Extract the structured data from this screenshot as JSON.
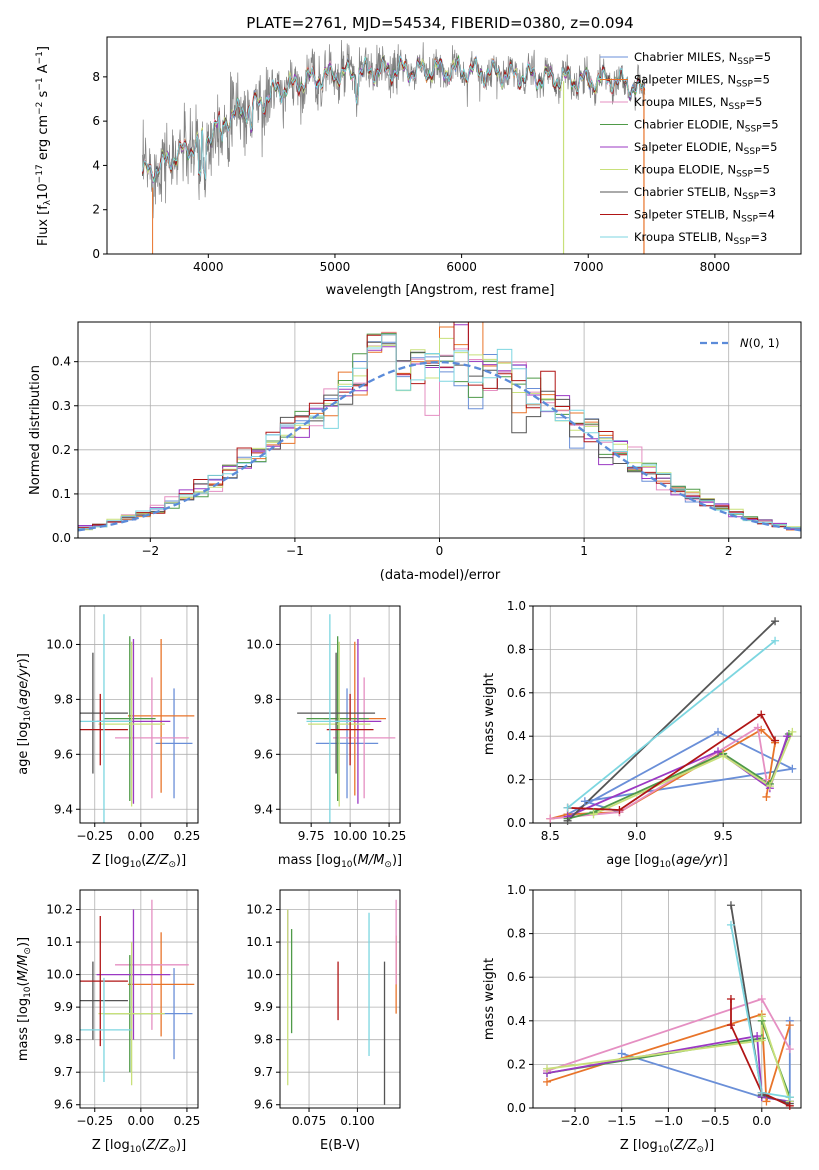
{
  "colors": {
    "Chabrier MILES": "#6a8fd8",
    "Salpeter MILES": "#e8742a",
    "Kroupa MILES": "#e58fc2",
    "Chabrier ELODIE": "#4f9a48",
    "Salpeter ELODIE": "#9b39c3",
    "Kroupa ELODIE": "#c8e07a",
    "Chabrier STELIB": "#555555",
    "Salpeter STELIB": "#b01515",
    "Kroupa STELIB": "#7dd6e0",
    "normal": "#5b8bd9"
  },
  "chart_data": [
    {
      "id": "spectrum",
      "type": "line",
      "title": "PLATE=2761, MJD=54534, FIBERID=0380, z=0.094",
      "xlabel": "wavelength [Angstrom, rest frame]",
      "ylabel_parts": [
        "Flux [f",
        "λ",
        "10",
        "−17",
        " erg cm",
        "−2",
        " s",
        "−1",
        " A",
        "−1",
        "]"
      ],
      "xlim": [
        3200,
        8680
      ],
      "ylim": [
        0,
        9.8
      ],
      "xticks": [
        "4000",
        "5000",
        "6000",
        "7000",
        "8000"
      ],
      "yticks": [
        "0",
        "2",
        "4",
        "6",
        "8"
      ],
      "legend": [
        {
          "name": "Chabrier MILES",
          "n": "5"
        },
        {
          "name": "Salpeter MILES",
          "n": "5"
        },
        {
          "name": "Kroupa MILES",
          "n": "5"
        },
        {
          "name": "Chabrier ELODIE",
          "n": "5"
        },
        {
          "name": "Salpeter ELODIE",
          "n": "5"
        },
        {
          "name": "Kroupa ELODIE",
          "n": "5"
        },
        {
          "name": "Chabrier STELIB",
          "n": "3"
        },
        {
          "name": "Salpeter STELIB",
          "n": "4"
        },
        {
          "name": "Kroupa STELIB",
          "n": "3"
        }
      ],
      "legend_nssp_label": "N",
      "legend_nssp_sub": "SSP",
      "continuum": {
        "x": [
          3480,
          3600,
          3700,
          3800,
          3900,
          4000,
          4100,
          4200,
          4300,
          4400,
          4500,
          4600,
          4700,
          4800,
          4900,
          5000,
          5200,
          5400,
          5600,
          5800,
          6000,
          6200,
          6400,
          6600,
          6800,
          7000,
          7200,
          7400
        ],
        "y": [
          3.6,
          3.9,
          4.3,
          4.6,
          5.0,
          5.3,
          6.0,
          6.3,
          6.5,
          6.8,
          7.2,
          7.5,
          7.7,
          7.9,
          8.0,
          8.1,
          8.2,
          8.3,
          8.3,
          8.3,
          8.3,
          8.2,
          8.1,
          8.0,
          7.9,
          7.8,
          7.9,
          7.4
        ]
      },
      "data_xrange": [
        3480,
        7450
      ]
    },
    {
      "id": "residuals",
      "type": "step",
      "xlabel": "(data-model)/error",
      "ylabel": "Normed distribution",
      "xlim": [
        -2.5,
        2.5
      ],
      "ylim": [
        0,
        0.49
      ],
      "xticks": [
        "−2",
        "−1",
        "0",
        "1",
        "2"
      ],
      "yticks": [
        "0.0",
        "0.1",
        "0.2",
        "0.3",
        "0.4"
      ],
      "legend": "N(0,1)",
      "bin_width": 0.1,
      "reference": {
        "name": "N(0,1)",
        "mean": 0,
        "sigma": 1
      }
    },
    {
      "id": "age-vs-Z",
      "type": "errorbar",
      "xlabel": "Z [log10(Z/Z⊙)]",
      "ylabel": "age [log10(age/yr)]",
      "xlim": [
        -0.33,
        0.31
      ],
      "ylim": [
        9.35,
        10.14
      ],
      "xticks": [
        "−0.25",
        "0.00",
        "0.25"
      ],
      "yticks": [
        "9.4",
        "9.6",
        "9.8",
        "10.0"
      ],
      "points": [
        {
          "model": "Chabrier MILES",
          "x": 0.18,
          "xerr": 0.1,
          "y": 9.64,
          "yerr": 0.2
        },
        {
          "model": "Salpeter MILES",
          "x": 0.11,
          "xerr": 0.18,
          "y": 9.74,
          "yerr": 0.28
        },
        {
          "model": "Kroupa MILES",
          "x": 0.06,
          "xerr": 0.2,
          "y": 9.66,
          "yerr": 0.22
        },
        {
          "model": "Chabrier ELODIE",
          "x": -0.06,
          "xerr": 0.14,
          "y": 9.73,
          "yerr": 0.3
        },
        {
          "model": "Salpeter ELODIE",
          "x": -0.04,
          "xerr": 0.2,
          "y": 9.72,
          "yerr": 0.3
        },
        {
          "model": "Kroupa ELODIE",
          "x": -0.05,
          "xerr": 0.18,
          "y": 9.71,
          "yerr": 0.3
        },
        {
          "model": "Chabrier STELIB",
          "x": -0.26,
          "xerr": 0.19,
          "y": 9.75,
          "yerr": 0.22
        },
        {
          "model": "Salpeter STELIB",
          "x": -0.22,
          "xerr": 0.15,
          "y": 9.69,
          "yerr": 0.13
        },
        {
          "model": "Kroupa STELIB",
          "x": -0.2,
          "xerr": 0.15,
          "y": 9.72,
          "yerr": 0.39
        }
      ]
    },
    {
      "id": "age-vs-mass",
      "type": "errorbar",
      "xlabel": "mass [log10(M/M⊙)]",
      "ylabel": "",
      "xlim": [
        9.55,
        10.32
      ],
      "ylim": [
        9.35,
        10.14
      ],
      "xticks": [
        "9.75",
        "10.00",
        "10.25"
      ],
      "yticks": [
        "9.4",
        "9.6",
        "9.8",
        "10.0"
      ],
      "points": [
        {
          "model": "Chabrier MILES",
          "x": 9.98,
          "xerr": 0.2,
          "y": 9.64,
          "yerr": 0.2
        },
        {
          "model": "Salpeter MILES",
          "x": 10.03,
          "xerr": 0.2,
          "y": 9.73,
          "yerr": 0.28
        },
        {
          "model": "Kroupa MILES",
          "x": 10.09,
          "xerr": 0.2,
          "y": 9.66,
          "yerr": 0.22
        },
        {
          "model": "Chabrier ELODIE",
          "x": 9.92,
          "xerr": 0.2,
          "y": 9.73,
          "yerr": 0.3
        },
        {
          "model": "Salpeter ELODIE",
          "x": 10.05,
          "xerr": 0.15,
          "y": 9.72,
          "yerr": 0.3
        },
        {
          "model": "Kroupa ELODIE",
          "x": 9.93,
          "xerr": 0.2,
          "y": 9.71,
          "yerr": 0.3
        },
        {
          "model": "Chabrier STELIB",
          "x": 9.91,
          "xerr": 0.25,
          "y": 9.75,
          "yerr": 0.22
        },
        {
          "model": "Salpeter STELIB",
          "x": 10.0,
          "xerr": 0.15,
          "y": 9.69,
          "yerr": 0.13
        },
        {
          "model": "Kroupa STELIB",
          "x": 9.87,
          "xerr": 0.15,
          "y": 9.72,
          "yerr": 0.39
        }
      ]
    },
    {
      "id": "weight-vs-age",
      "type": "line",
      "xlabel": "age [log10(age/yr)]",
      "ylabel": "mass weight",
      "xlim": [
        8.4,
        9.95
      ],
      "ylim": [
        0,
        1.0
      ],
      "xticks": [
        "8.5",
        "9.0",
        "9.5"
      ],
      "yticks": [
        "0.0",
        "0.2",
        "0.4",
        "0.6",
        "0.8",
        "1.0"
      ],
      "series": [
        {
          "model": "Chabrier MILES",
          "x": [
            8.6,
            9.47,
            9.9,
            8.7,
            8.9
          ],
          "y": [
            0.04,
            0.42,
            0.25,
            0.1,
            0.05
          ]
        },
        {
          "model": "Salpeter MILES",
          "x": [
            8.5,
            8.6,
            8.9,
            9.72,
            9.8,
            9.75
          ],
          "y": [
            0.02,
            0.04,
            0.05,
            0.43,
            0.37,
            0.12
          ]
        },
        {
          "model": "Kroupa MILES",
          "x": [
            8.5,
            8.9,
            9.7,
            9.75
          ],
          "y": [
            0.02,
            0.05,
            0.44,
            0.2
          ]
        },
        {
          "model": "Chabrier ELODIE",
          "x": [
            8.6,
            8.75,
            9.5,
            9.77,
            9.88
          ],
          "y": [
            0.02,
            0.05,
            0.32,
            0.18,
            0.41
          ]
        },
        {
          "model": "Salpeter ELODIE",
          "x": [
            8.6,
            9.47,
            9.77,
            9.87
          ],
          "y": [
            0.03,
            0.33,
            0.16,
            0.4
          ]
        },
        {
          "model": "Kroupa ELODIE",
          "x": [
            8.75,
            9.5,
            9.77,
            9.9
          ],
          "y": [
            0.04,
            0.31,
            0.17,
            0.42
          ]
        },
        {
          "model": "Chabrier STELIB",
          "x": [
            8.6,
            9.8
          ],
          "y": [
            0.01,
            0.93
          ]
        },
        {
          "model": "Salpeter STELIB",
          "x": [
            8.6,
            8.9,
            9.72,
            9.8
          ],
          "y": [
            0.07,
            0.06,
            0.5,
            0.38
          ]
        },
        {
          "model": "Kroupa STELIB",
          "x": [
            8.6,
            9.8
          ],
          "y": [
            0.07,
            0.84
          ]
        }
      ]
    },
    {
      "id": "mass-vs-Z",
      "type": "errorbar",
      "xlabel": "Z [log10(Z/Z⊙)]",
      "ylabel": "mass [log10(M/M⊙)]",
      "xlim": [
        -0.33,
        0.31
      ],
      "ylim": [
        9.59,
        10.26
      ],
      "xticks": [
        "−0.25",
        "0.00",
        "0.25"
      ],
      "yticks": [
        "9.6",
        "9.7",
        "9.8",
        "9.9",
        "10.0",
        "10.1",
        "10.2"
      ],
      "points": [
        {
          "model": "Chabrier MILES",
          "x": 0.18,
          "xerr": 0.1,
          "y": 9.88,
          "yerr": 0.14
        },
        {
          "model": "Salpeter MILES",
          "x": 0.11,
          "xerr": 0.18,
          "y": 9.97,
          "yerr": 0.16
        },
        {
          "model": "Kroupa MILES",
          "x": 0.06,
          "xerr": 0.2,
          "y": 10.03,
          "yerr": 0.2
        },
        {
          "model": "Chabrier ELODIE",
          "x": -0.06,
          "xerr": 0.14,
          "y": 9.88,
          "yerr": 0.18
        },
        {
          "model": "Salpeter ELODIE",
          "x": -0.04,
          "xerr": 0.2,
          "y": 10.0,
          "yerr": 0.2
        },
        {
          "model": "Kroupa ELODIE",
          "x": -0.05,
          "xerr": 0.18,
          "y": 9.88,
          "yerr": 0.22
        },
        {
          "model": "Chabrier STELIB",
          "x": -0.26,
          "xerr": 0.19,
          "y": 9.92,
          "yerr": 0.12
        },
        {
          "model": "Salpeter STELIB",
          "x": -0.22,
          "xerr": 0.15,
          "y": 9.98,
          "yerr": 0.2
        },
        {
          "model": "Kroupa STELIB",
          "x": -0.2,
          "xerr": 0.15,
          "y": 9.83,
          "yerr": 0.16
        }
      ]
    },
    {
      "id": "mass-vs-ebv",
      "type": "errorbar",
      "xlabel": "E(B-V)",
      "ylabel": "",
      "xlim": [
        0.06,
        0.122
      ],
      "ylim": [
        9.59,
        10.26
      ],
      "xticks": [
        "0.075",
        "0.100"
      ],
      "yticks": [
        "9.6",
        "9.7",
        "9.8",
        "9.9",
        "10.0",
        "10.1",
        "10.2"
      ],
      "points": [
        {
          "model": "Chabrier ELODIE",
          "x": 0.066,
          "y": 9.98,
          "yerr": 0.16
        },
        {
          "model": "Salpeter ELODIE",
          "x": 0.064,
          "y": 10.1,
          "yerr": 0.1
        },
        {
          "model": "Kroupa ELODIE",
          "x": 0.064,
          "y": 9.93,
          "yerr": 0.27
        },
        {
          "model": "Salpeter STELIB",
          "x": 0.09,
          "y": 9.95,
          "yerr": 0.09
        },
        {
          "model": "Kroupa STELIB",
          "x": 0.106,
          "y": 9.97,
          "yerr": 0.22
        },
        {
          "model": "Chabrier STELIB",
          "x": 0.114,
          "y": 9.82,
          "yerr": 0.22
        },
        {
          "model": "Salpeter MILES",
          "x": 0.12,
          "y": 10.0,
          "yerr": 0.12
        },
        {
          "model": "Kroupa MILES",
          "x": 0.12,
          "y": 10.1,
          "yerr": 0.13
        }
      ]
    },
    {
      "id": "weight-vs-Z",
      "type": "line",
      "xlabel": "Z [log10(Z/Z⊙)]",
      "ylabel": "mass weight",
      "xlim": [
        -2.45,
        0.42
      ],
      "ylim": [
        0,
        1.0
      ],
      "xticks": [
        "−2.0",
        "−1.5",
        "−1.0",
        "−0.5",
        "0.0"
      ],
      "yticks": [
        "0.0",
        "0.2",
        "0.4",
        "0.6",
        "0.8",
        "1.0"
      ],
      "series": [
        {
          "model": "Chabrier MILES",
          "x": [
            -1.5,
            0.0,
            0.3,
            0.3
          ],
          "y": [
            0.25,
            0.05,
            0.03,
            0.4
          ]
        },
        {
          "model": "Salpeter MILES",
          "x": [
            -2.3,
            0.0,
            0.05,
            0.3
          ],
          "y": [
            0.12,
            0.43,
            0.03,
            0.38
          ]
        },
        {
          "model": "Kroupa MILES",
          "x": [
            -2.3,
            0.0,
            0.3
          ],
          "y": [
            0.17,
            0.5,
            0.27
          ]
        },
        {
          "model": "Chabrier ELODIE",
          "x": [
            -2.3,
            0.0,
            0.0,
            0.3
          ],
          "y": [
            0.16,
            0.32,
            0.4,
            0.05
          ]
        },
        {
          "model": "Salpeter ELODIE",
          "x": [
            -2.3,
            -0.05,
            0.0,
            0.3
          ],
          "y": [
            0.16,
            0.33,
            0.05,
            0.03
          ]
        },
        {
          "model": "Kroupa ELODIE",
          "x": [
            -2.3,
            0.0,
            0.0,
            0.3
          ],
          "y": [
            0.18,
            0.31,
            0.42,
            0.03
          ]
        },
        {
          "model": "Chabrier STELIB",
          "x": [
            -0.33,
            0.0,
            0.3
          ],
          "y": [
            0.93,
            0.06,
            0.02
          ]
        },
        {
          "model": "Salpeter STELIB",
          "x": [
            -0.33,
            -0.33,
            0.0,
            0.3
          ],
          "y": [
            0.5,
            0.38,
            0.07,
            0.01
          ]
        },
        {
          "model": "Kroupa STELIB",
          "x": [
            -0.33,
            0.0,
            0.3
          ],
          "y": [
            0.84,
            0.07,
            0.05
          ]
        }
      ]
    }
  ]
}
